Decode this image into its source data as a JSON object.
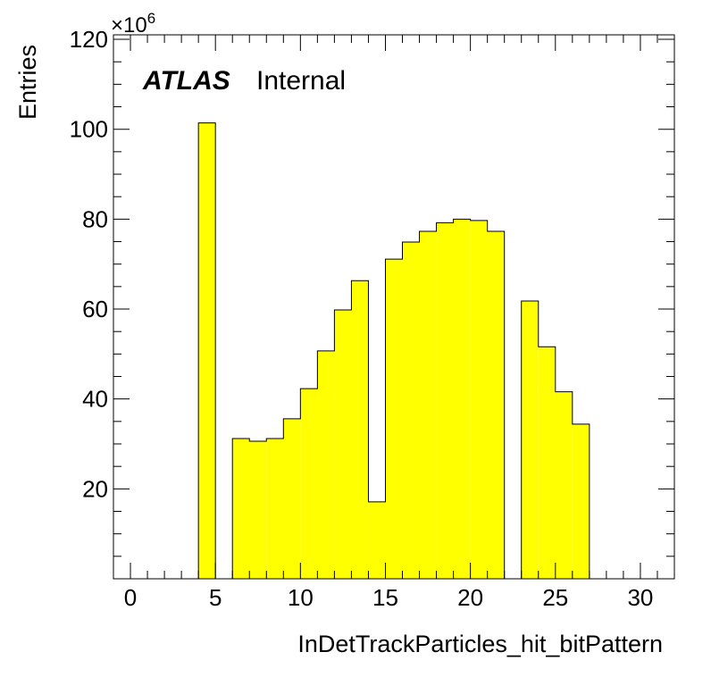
{
  "chart_data": {
    "type": "bar",
    "xlabel": "InDetTrackParticles_hit_bitPattern",
    "ylabel": "Entries",
    "y_exponent_label": "×10",
    "y_exponent_power": "6",
    "experiment_label": "ATLAS",
    "status_label": "Internal",
    "xlim": [
      -1,
      32
    ],
    "ylim": [
      0,
      121
    ],
    "x_ticks": [
      0,
      5,
      10,
      15,
      20,
      25,
      30
    ],
    "y_ticks": [
      20,
      40,
      60,
      80,
      100,
      120
    ],
    "bin_width": 1,
    "bins_x": [
      4,
      6,
      7,
      8,
      9,
      10,
      11,
      12,
      13,
      14,
      15,
      16,
      17,
      18,
      19,
      20,
      21,
      23,
      24,
      25,
      26
    ],
    "values": [
      101.4,
      31.2,
      30.6,
      31.2,
      35.6,
      42.3,
      50.7,
      59.8,
      66.3,
      17.1,
      71.1,
      74.9,
      77.3,
      79.2,
      80.0,
      79.7,
      77.3,
      61.8,
      51.6,
      41.6,
      34.4
    ],
    "fill_color": "#ffff00",
    "line_color": "#000000",
    "grid": false
  }
}
